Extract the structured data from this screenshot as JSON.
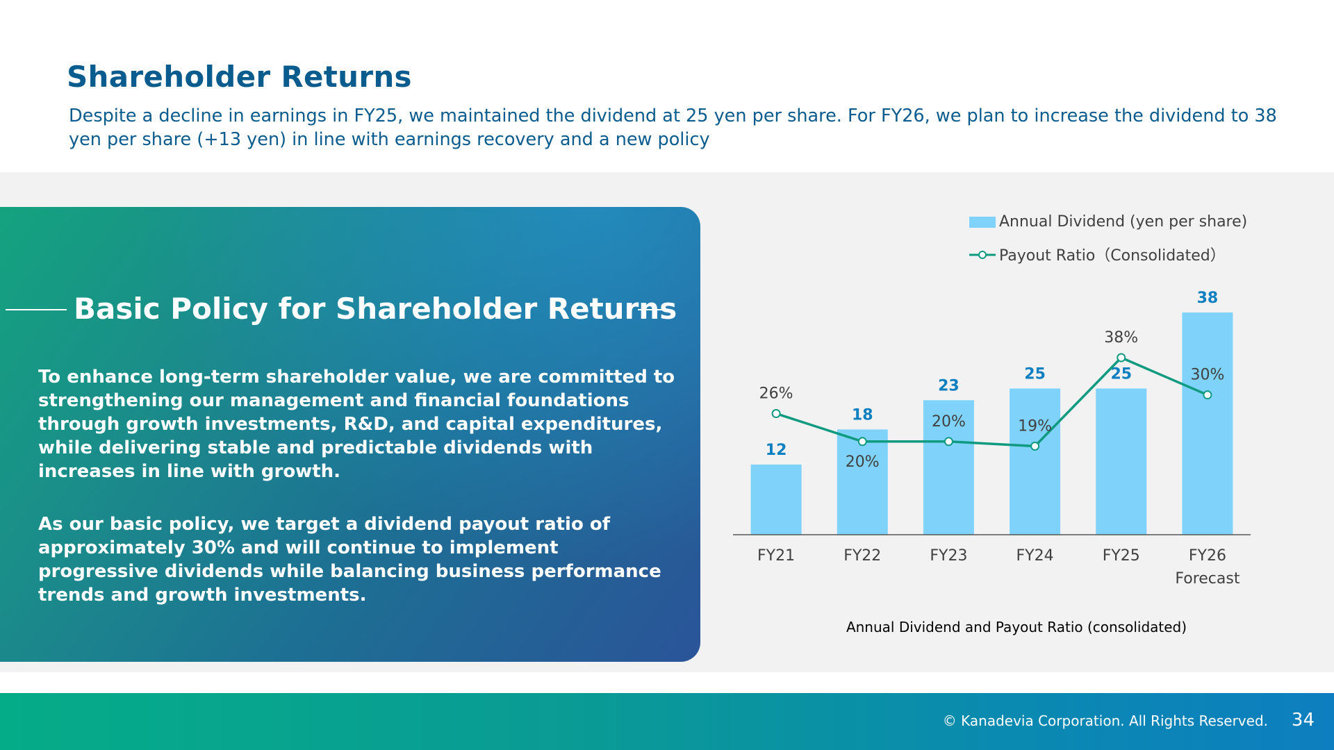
{
  "header": {
    "title": "Shareholder Returns",
    "subtitle": "Despite a decline in earnings in FY25, we maintained the dividend at 25 yen per share. For FY26, we plan to increase the dividend to 38 yen per share (+13 yen) in line with earnings recovery and a new policy"
  },
  "policy": {
    "heading": "Basic Policy for Shareholder Returns",
    "paragraph_1": "To enhance long-term shareholder value, we are committed to strengthening our management and financial foundations through growth investments, R&D, and capital expenditures, while delivering stable and predictable dividends with increases in line with growth.",
    "paragraph_2": "As our basic policy, we target a dividend payout ratio of approximately 30% and will continue to implement progressive dividends while balancing business performance trends and growth investments."
  },
  "chart_data": {
    "type": "bar",
    "title": "Annual Dividend and Payout Ratio (consolidated)",
    "categories": [
      "FY21",
      "FY22",
      "FY23",
      "FY24",
      "FY25",
      "FY26 Forecast"
    ],
    "category_lines": [
      [
        "FY21"
      ],
      [
        "FY22"
      ],
      [
        "FY23"
      ],
      [
        "FY24"
      ],
      [
        "FY25"
      ],
      [
        "FY26",
        "Forecast"
      ]
    ],
    "series": [
      {
        "name": "Annual Dividend (yen per share)",
        "type": "bar",
        "values": [
          12,
          18,
          23,
          25,
          25,
          38
        ],
        "labels": [
          "12",
          "18",
          "23",
          "25",
          "25",
          "38"
        ],
        "color": "#7fd3fb",
        "label_color": "#0e7fc0"
      },
      {
        "name": "Payout Ratio（Consolidated）",
        "type": "line",
        "values": [
          26,
          20,
          20,
          19,
          38,
          30
        ],
        "labels": [
          "26%",
          "20%",
          "20%",
          "19%",
          "38%",
          "30%"
        ],
        "color": "#109a80",
        "label_color": "#404040"
      }
    ],
    "dividend_range": [
      0,
      38
    ],
    "payout_range": [
      0,
      38
    ],
    "legend_position": "top-right",
    "grid": false
  },
  "footer": {
    "copyright": "© Kanadevia Corporation. All Rights Reserved.",
    "page_number": "34"
  }
}
